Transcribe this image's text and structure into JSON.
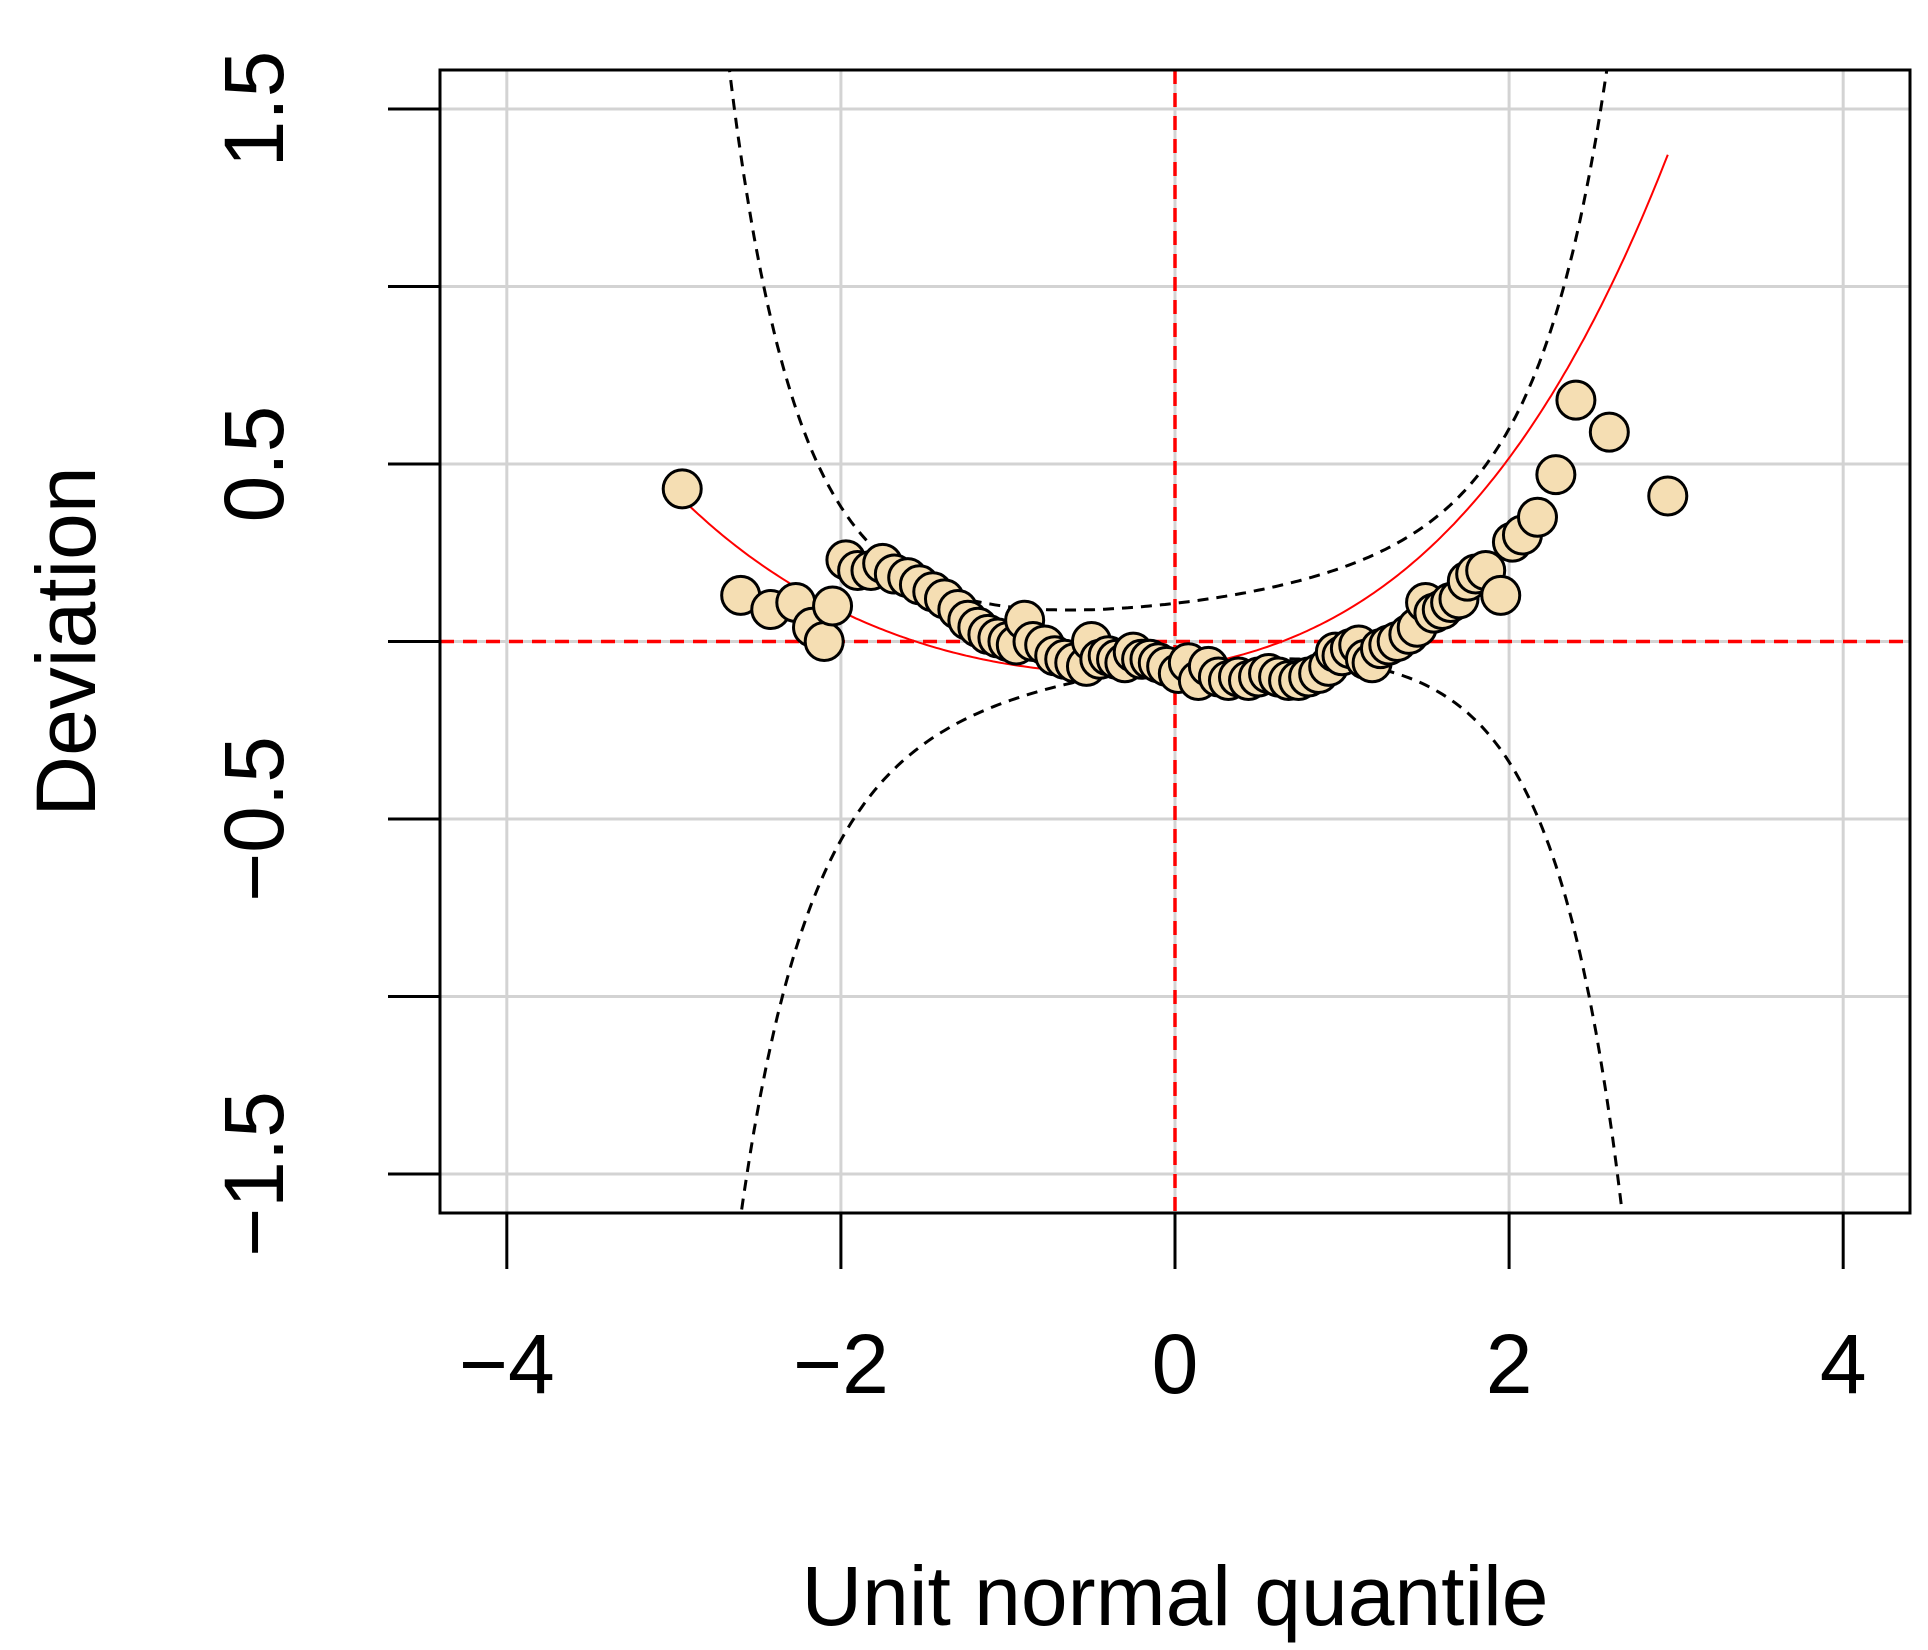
{
  "chart_data": {
    "type": "scatter",
    "title": "",
    "xlabel": "Unit normal quantile",
    "ylabel": "Deviation",
    "xlim": [
      -4.4,
      4.4
    ],
    "ylim": [
      -1.61,
      1.61
    ],
    "x_ticks": [
      -4,
      -2,
      0,
      2,
      4
    ],
    "y_ticks": [
      -1.5,
      -1.0,
      -0.5,
      0.0,
      0.5,
      1.0,
      1.5
    ],
    "x_tick_labels": [
      "−4",
      "−2",
      "0",
      "2",
      "4"
    ],
    "y_tick_labels": [
      "−1.5",
      "",
      "−0.5",
      "",
      "0.5",
      "",
      "1.5"
    ],
    "grid": true,
    "reference_lines": {
      "x": 0,
      "y": 0
    },
    "confidence_band": {
      "center_curve": [
        0.02,
        0.055
      ],
      "scale": 0.0875,
      "kind": "dashed pointwise bounds"
    },
    "trend_curve": {
      "x_range": [
        -2.95,
        2.95
      ],
      "coefficients": [
        -0.075,
        0.06,
        0.08,
        0.012,
        0.0035
      ]
    },
    "colors": {
      "point_fill": "#f5deb3",
      "point_stroke": "#000000",
      "trend": "#ff0000",
      "reference": "#ff0000",
      "grid": "#d3d3d3",
      "band": "#000000"
    },
    "series": [
      {
        "points": [
          [
            -2.95,
            0.43
          ],
          [
            -2.6,
            0.13
          ],
          [
            -2.42,
            0.09
          ],
          [
            -2.27,
            0.11
          ],
          [
            -2.17,
            0.04
          ],
          [
            -2.1,
            0.0
          ],
          [
            -2.05,
            0.1
          ],
          [
            -1.97,
            0.23
          ],
          [
            -1.9,
            0.2
          ],
          [
            -1.82,
            0.2
          ],
          [
            -1.75,
            0.22
          ],
          [
            -1.68,
            0.19
          ],
          [
            -1.6,
            0.18
          ],
          [
            -1.53,
            0.16
          ],
          [
            -1.45,
            0.14
          ],
          [
            -1.38,
            0.12
          ],
          [
            -1.3,
            0.09
          ],
          [
            -1.24,
            0.06
          ],
          [
            -1.18,
            0.04
          ],
          [
            -1.12,
            0.02
          ],
          [
            -1.06,
            0.01
          ],
          [
            -1.0,
            0.0
          ],
          [
            -0.95,
            -0.01
          ],
          [
            -0.9,
            0.06
          ],
          [
            -0.85,
            0.0
          ],
          [
            -0.78,
            -0.01
          ],
          [
            -0.72,
            -0.04
          ],
          [
            -0.66,
            -0.05
          ],
          [
            -0.6,
            -0.06
          ],
          [
            -0.53,
            -0.07
          ],
          [
            -0.5,
            0.0
          ],
          [
            -0.45,
            -0.05
          ],
          [
            -0.4,
            -0.04
          ],
          [
            -0.35,
            -0.05
          ],
          [
            -0.3,
            -0.06
          ],
          [
            -0.25,
            -0.03
          ],
          [
            -0.2,
            -0.05
          ],
          [
            -0.15,
            -0.05
          ],
          [
            -0.1,
            -0.06
          ],
          [
            -0.05,
            -0.07
          ],
          [
            0.02,
            -0.09
          ],
          [
            0.08,
            -0.06
          ],
          [
            0.14,
            -0.11
          ],
          [
            0.2,
            -0.07
          ],
          [
            0.26,
            -0.1
          ],
          [
            0.32,
            -0.11
          ],
          [
            0.38,
            -0.1
          ],
          [
            0.44,
            -0.11
          ],
          [
            0.5,
            -0.1
          ],
          [
            0.56,
            -0.09
          ],
          [
            0.62,
            -0.1
          ],
          [
            0.68,
            -0.11
          ],
          [
            0.74,
            -0.11
          ],
          [
            0.8,
            -0.1
          ],
          [
            0.86,
            -0.09
          ],
          [
            0.92,
            -0.07
          ],
          [
            0.96,
            -0.03
          ],
          [
            1.0,
            -0.04
          ],
          [
            1.05,
            -0.02
          ],
          [
            1.1,
            -0.01
          ],
          [
            1.14,
            -0.05
          ],
          [
            1.18,
            -0.06
          ],
          [
            1.23,
            -0.02
          ],
          [
            1.28,
            -0.01
          ],
          [
            1.33,
            0.0
          ],
          [
            1.4,
            0.02
          ],
          [
            1.45,
            0.04
          ],
          [
            1.5,
            0.11
          ],
          [
            1.55,
            0.08
          ],
          [
            1.6,
            0.09
          ],
          [
            1.65,
            0.11
          ],
          [
            1.7,
            0.12
          ],
          [
            1.75,
            0.17
          ],
          [
            1.8,
            0.19
          ],
          [
            1.86,
            0.2
          ],
          [
            1.95,
            0.13
          ],
          [
            2.02,
            0.28
          ],
          [
            2.08,
            0.3
          ],
          [
            2.17,
            0.35
          ],
          [
            2.28,
            0.47
          ],
          [
            2.4,
            0.68
          ],
          [
            2.6,
            0.59
          ],
          [
            2.95,
            0.41
          ]
        ]
      }
    ]
  }
}
